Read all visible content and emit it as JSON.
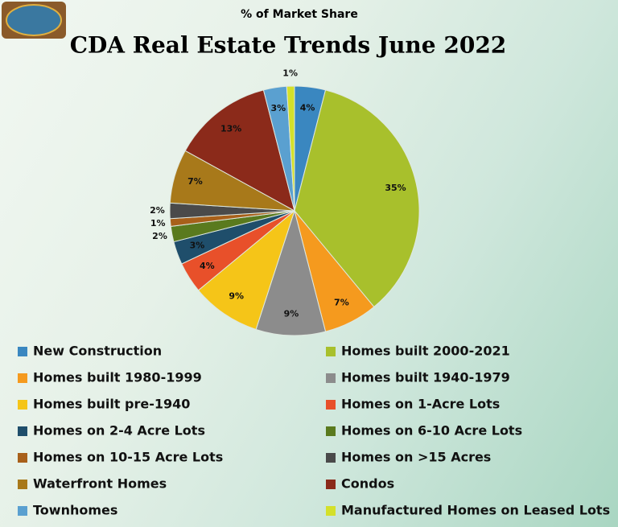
{
  "chart_data": {
    "type": "pie",
    "subtitle": "% of Market Share",
    "title": "CDA Real Estate Trends June 2022",
    "categories": [
      "New Construction",
      "Homes built 2000-2021",
      "Homes built 1980-1999",
      "Homes built 1940-1979",
      "Homes built pre-1940",
      "Homes on 1-Acre Lots",
      "Homes on 2-4 Acre Lots",
      "Homes on 6-10 Acre Lots",
      "Homes on 10-15 Acre Lots",
      "Homes on >15 Acres",
      "Waterfront Homes",
      "Condos",
      "Townhomes",
      "Manufactured Homes on Leased Lots"
    ],
    "values": [
      4,
      35,
      7,
      9,
      9,
      4,
      3,
      2,
      1,
      2,
      7,
      13,
      3,
      1
    ],
    "value_labels": [
      "4%",
      "35%",
      "7%",
      "9%",
      "9%",
      "4%",
      "3%",
      "2%",
      "1%",
      "2%",
      "7%",
      "13%",
      "3%",
      "1%"
    ],
    "colors": [
      "#3a87c0",
      "#a8c02c",
      "#f59a1e",
      "#8c8c8c",
      "#f5c518",
      "#e8502a",
      "#1f4e6b",
      "#5a7a1e",
      "#a8601a",
      "#4a4a4a",
      "#a8791a",
      "#8b2a1a",
      "#5aa0d0",
      "#d4e02a"
    ]
  }
}
